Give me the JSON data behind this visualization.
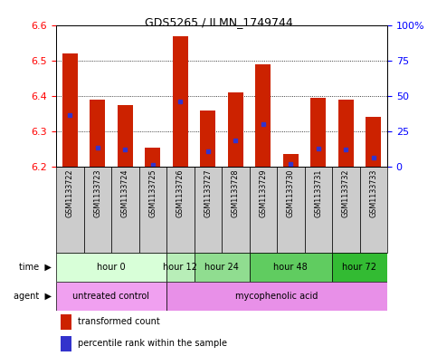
{
  "title": "GDS5265 / ILMN_1749744",
  "samples": [
    "GSM1133722",
    "GSM1133723",
    "GSM1133724",
    "GSM1133725",
    "GSM1133726",
    "GSM1133727",
    "GSM1133728",
    "GSM1133729",
    "GSM1133730",
    "GSM1133731",
    "GSM1133732",
    "GSM1133733"
  ],
  "bar_bottom": 6.2,
  "bar_tops": [
    6.52,
    6.39,
    6.375,
    6.255,
    6.57,
    6.36,
    6.41,
    6.49,
    6.235,
    6.395,
    6.39,
    6.34
  ],
  "blue_values": [
    6.345,
    6.255,
    6.248,
    6.205,
    6.385,
    6.243,
    6.275,
    6.32,
    6.208,
    6.252,
    6.248,
    6.225
  ],
  "ylim": [
    6.2,
    6.6
  ],
  "yticks_left": [
    6.2,
    6.3,
    6.4,
    6.5,
    6.6
  ],
  "yticks_right": [
    0,
    25,
    50,
    75,
    100
  ],
  "bar_color": "#cc2200",
  "blue_color": "#3333cc",
  "bar_width": 0.55,
  "time_groups": [
    {
      "label": "hour 0",
      "start": 0,
      "end": 3
    },
    {
      "label": "hour 12",
      "start": 4,
      "end": 4
    },
    {
      "label": "hour 24",
      "start": 5,
      "end": 6
    },
    {
      "label": "hour 48",
      "start": 7,
      "end": 9
    },
    {
      "label": "hour 72",
      "start": 10,
      "end": 11
    }
  ],
  "time_colors": [
    "#d8ffd8",
    "#b8eeb8",
    "#90dd90",
    "#60cc60",
    "#33bb33"
  ],
  "agent_groups": [
    {
      "label": "untreated control",
      "start": 0,
      "end": 3
    },
    {
      "label": "mycophenolic acid",
      "start": 4,
      "end": 11
    }
  ],
  "agent_colors": [
    "#f0a0f0",
    "#e890e8"
  ],
  "sample_bg": "#cccccc",
  "legend_red_label": "transformed count",
  "legend_blue_label": "percentile rank within the sample"
}
